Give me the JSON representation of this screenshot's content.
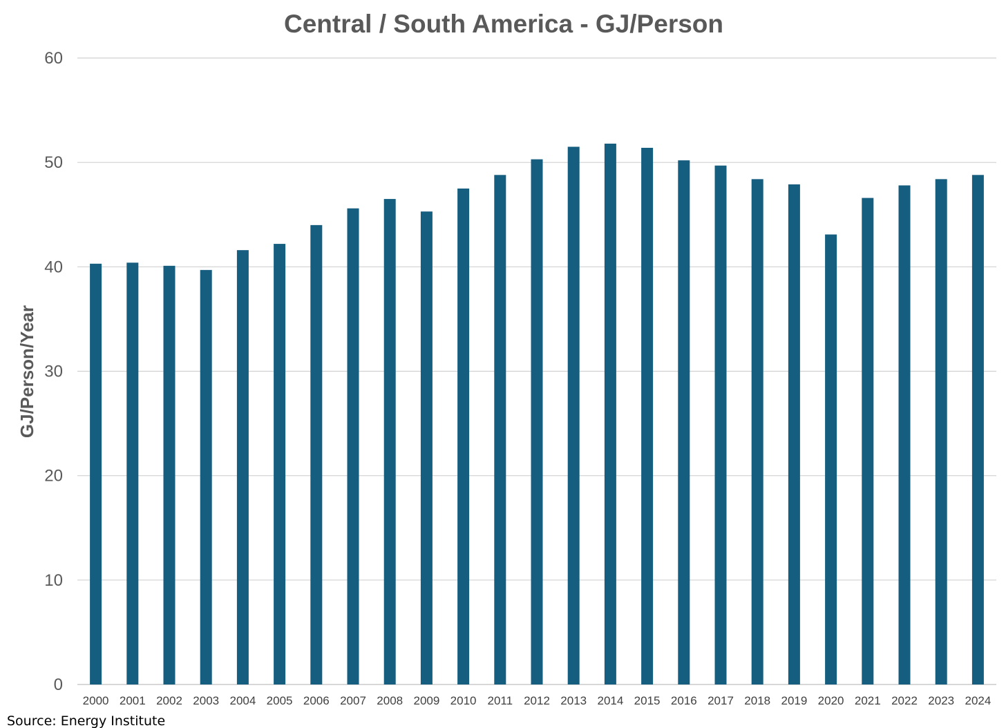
{
  "chart_data": {
    "type": "bar",
    "title": "Central / South America - GJ/Person",
    "xlabel": "",
    "ylabel": "GJ/Person/Year",
    "categories": [
      "2000",
      "2001",
      "2002",
      "2003",
      "2004",
      "2005",
      "2006",
      "2007",
      "2008",
      "2009",
      "2010",
      "2011",
      "2012",
      "2013",
      "2014",
      "2015",
      "2016",
      "2017",
      "2018",
      "2019",
      "2020",
      "2021",
      "2022",
      "2023",
      "2024"
    ],
    "values": [
      40.3,
      40.4,
      40.1,
      39.7,
      41.6,
      42.2,
      44.0,
      45.6,
      46.5,
      45.3,
      47.5,
      48.8,
      50.3,
      51.5,
      51.8,
      51.4,
      50.2,
      49.7,
      48.4,
      47.9,
      43.1,
      46.6,
      47.8,
      48.4,
      48.8
    ],
    "ylim": [
      0,
      60
    ],
    "yticks": [
      "0",
      "10",
      "20",
      "30",
      "40",
      "50",
      "60"
    ],
    "grid": true,
    "bar_color": "#165e80",
    "source": "Source: Energy Institute"
  }
}
